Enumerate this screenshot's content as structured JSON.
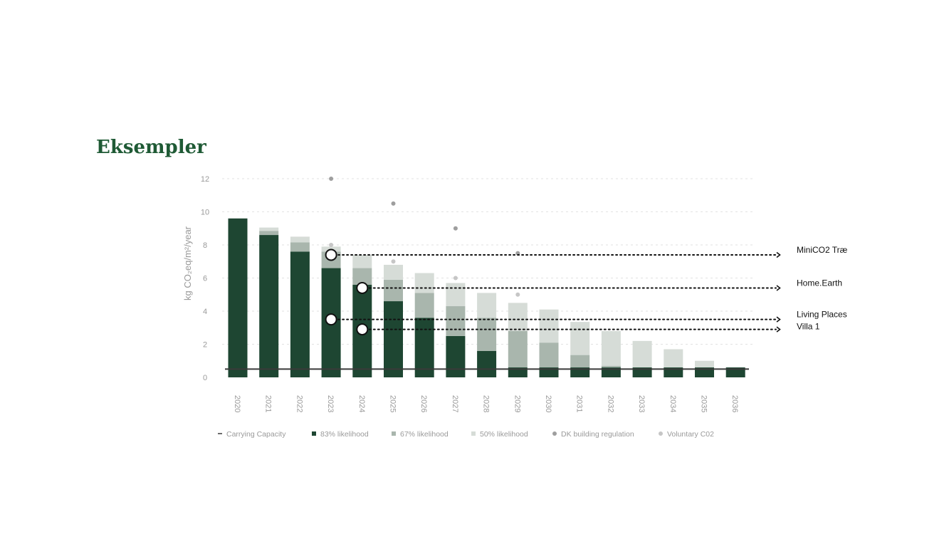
{
  "title": "Eksempler",
  "chart_data": {
    "type": "bar",
    "stacked": true,
    "ylabel": "kg CO₂eq/m²/year",
    "ylim": [
      0,
      12
    ],
    "yticks": [
      0,
      2,
      4,
      6,
      8,
      10,
      12
    ],
    "grid": true,
    "legend_position": "bottom",
    "categories": [
      "2020",
      "2021",
      "2022",
      "2023",
      "2024",
      "2025",
      "2026",
      "2027",
      "2028",
      "2029",
      "2030",
      "2031",
      "2032",
      "2033",
      "2034",
      "2035",
      "2036"
    ],
    "series": [
      {
        "name": "83% likelihood",
        "color": "#1e4632",
        "values": [
          9.6,
          8.6,
          7.6,
          6.6,
          5.6,
          4.6,
          3.6,
          2.5,
          1.6,
          0.6,
          0.6,
          0.6,
          0.6,
          0.6,
          0.6,
          0.6,
          0.6
        ]
      },
      {
        "name": "67% likelihood",
        "color": "#a9b6ad",
        "values": [
          0,
          0.25,
          0.55,
          1.0,
          1.0,
          1.3,
          1.5,
          1.8,
          2.0,
          2.2,
          1.5,
          0.75,
          0.1,
          0,
          0,
          0,
          0
        ]
      },
      {
        "name": "50% likelihood",
        "color": "#d6dcd7",
        "values": [
          0,
          0.2,
          0.35,
          0.3,
          0.8,
          0.9,
          1.2,
          1.4,
          1.5,
          1.7,
          2.0,
          2.0,
          2.1,
          1.6,
          1.1,
          0.4,
          0
        ]
      }
    ],
    "carrying_capacity": {
      "name": "Carrying Capacity",
      "value": 0.5,
      "color": "#3a3a3a"
    },
    "dk_building_regulation": {
      "name": "DK building regulation",
      "color": "#9e9e9e",
      "points": [
        {
          "x": "2023",
          "y": 12.0
        },
        {
          "x": "2025",
          "y": 10.5
        },
        {
          "x": "2027",
          "y": 9.0
        },
        {
          "x": "2029",
          "y": 7.5
        }
      ]
    },
    "voluntary_co2": {
      "name": "Voluntary C02",
      "color": "#c6c6c6",
      "points": [
        {
          "x": "2023",
          "y": 8.0
        },
        {
          "x": "2025",
          "y": 7.0
        },
        {
          "x": "2027",
          "y": 6.0
        },
        {
          "x": "2029",
          "y": 5.0
        }
      ]
    },
    "examples": [
      {
        "label": "MiniCO2 Træ",
        "x": "2023",
        "y": 7.4
      },
      {
        "label": "Home.Earth",
        "x": "2024",
        "y": 5.4
      },
      {
        "label": "Living Places",
        "x": "2023",
        "y": 3.5
      },
      {
        "label": "Villa 1",
        "x": "2024",
        "y": 2.9
      }
    ],
    "legend": [
      {
        "label": "Carrying Capacity",
        "marker": "line",
        "color": "#3a3a3a"
      },
      {
        "label": "83% likelihood",
        "marker": "square",
        "color": "#1e4632"
      },
      {
        "label": "67% likelihood",
        "marker": "square",
        "color": "#a9b6ad"
      },
      {
        "label": "50% likelihood",
        "marker": "square",
        "color": "#d6dcd7"
      },
      {
        "label": "DK building regulation",
        "marker": "dot",
        "color": "#9e9e9e"
      },
      {
        "label": "Voluntary C02",
        "marker": "dot",
        "color": "#c6c6c6"
      }
    ]
  }
}
